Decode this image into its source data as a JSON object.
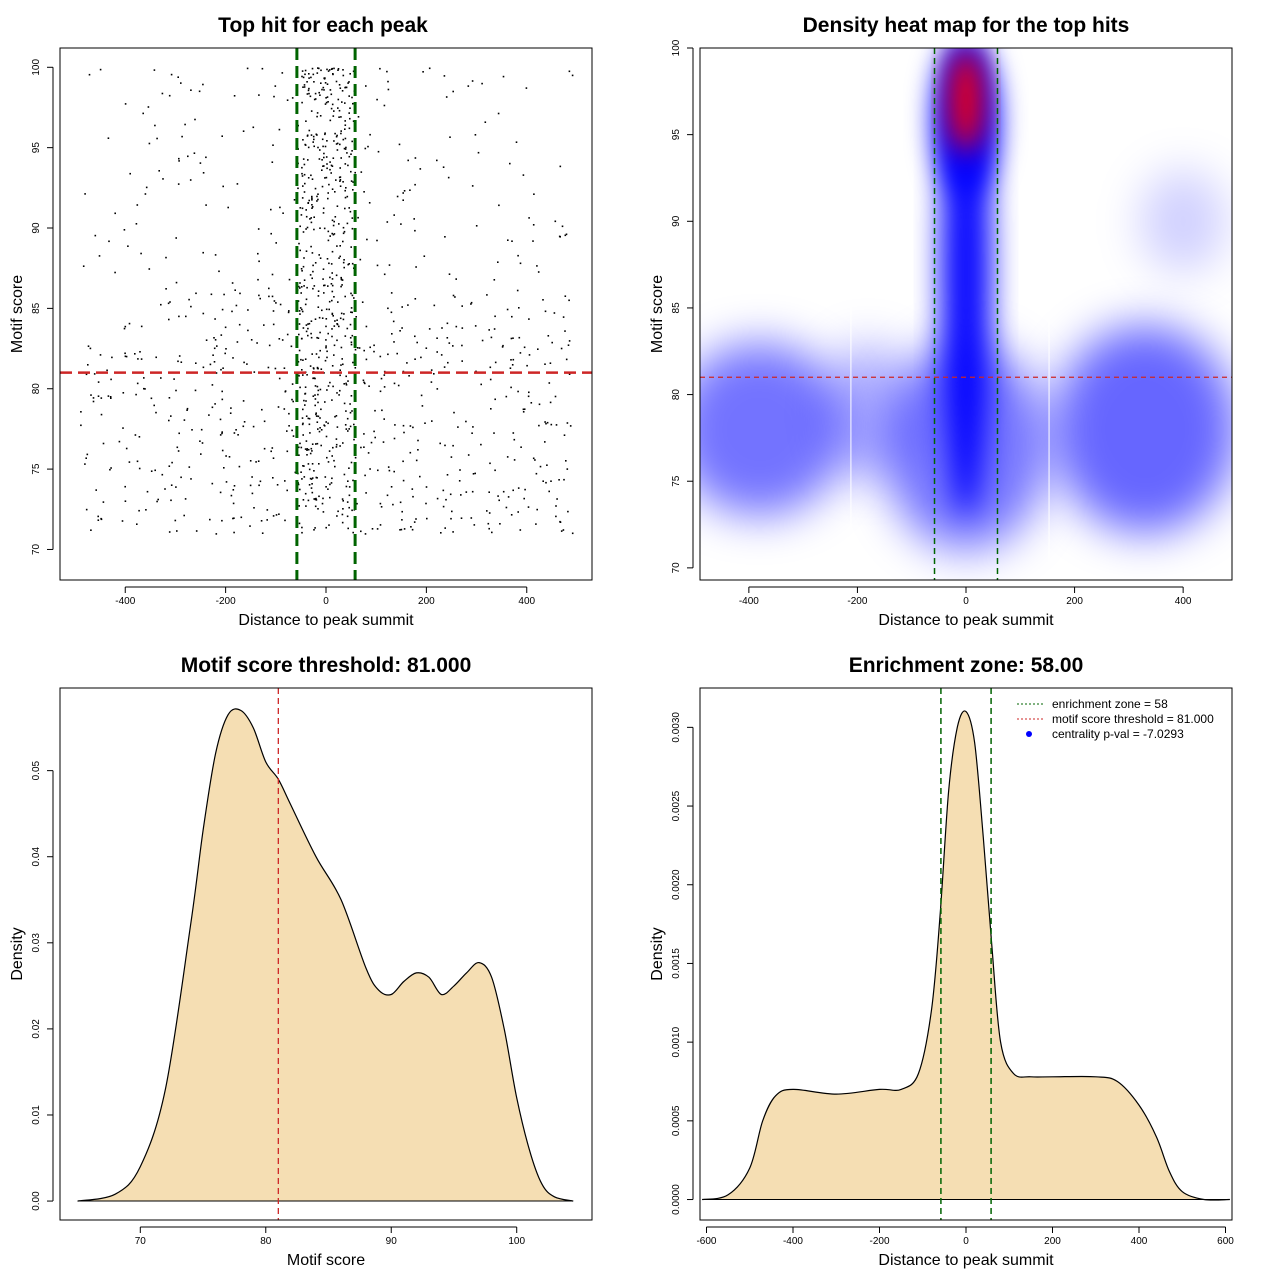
{
  "chart_data": [
    {
      "id": "scatter",
      "type": "scatter",
      "title": "Top hit for each peak",
      "xlabel": "Distance to peak summit",
      "ylabel": "Motif score",
      "xlim": [
        -530,
        530
      ],
      "ylim": [
        68.1,
        101.2
      ],
      "xticks": [
        -400,
        -200,
        0,
        200,
        400
      ],
      "yticks": [
        70,
        75,
        80,
        85,
        90,
        95,
        100
      ],
      "grid": false,
      "enrichment_zone": [
        -58,
        58
      ],
      "score_threshold": 81,
      "point_groups": [
        {
          "name": "",
          "x_range": [
            -490,
            490
          ],
          "y_range": [
            71,
            86
          ],
          "n": 620
        },
        {
          "name": "",
          "x_range": [
            -490,
            490
          ],
          "y_range": [
            86,
            100
          ],
          "n": 200
        },
        {
          "name": "",
          "x_range": [
            -58,
            58
          ],
          "y_range": [
            72,
            100
          ],
          "n": 520
        }
      ],
      "colors": {
        "points": "#000000",
        "zone": "#006400",
        "threshold": "#cd2626"
      }
    },
    {
      "id": "heatmap",
      "type": "heatmap",
      "title": "Density heat map for the top hits",
      "xlabel": "Distance to peak summit",
      "ylabel": "Motif score",
      "xlim": [
        -490,
        490
      ],
      "ylim": [
        69.3,
        100
      ],
      "xticks": [
        -400,
        -200,
        0,
        200,
        400
      ],
      "yticks": [
        70,
        75,
        80,
        85,
        90,
        95,
        100
      ],
      "enrichment_zone": [
        -58,
        58
      ],
      "score_threshold": 81,
      "density_peaks": [
        {
          "x": 0,
          "y": 97,
          "level": "high"
        },
        {
          "x": 0,
          "y": 88,
          "level": "medium"
        },
        {
          "x": 0,
          "y": 78,
          "level": "medium"
        },
        {
          "x": -400,
          "y": 77,
          "level": "low"
        },
        {
          "x": 350,
          "y": 77,
          "level": "low"
        }
      ],
      "colors": {
        "low": "#ffffff",
        "mid": "#0000ff",
        "high": "#ff0000",
        "zone": "#006400",
        "threshold": "#cd2626"
      }
    },
    {
      "id": "score_density",
      "type": "area",
      "title": "Motif score threshold: 81.000",
      "xlabel": "Motif score",
      "ylabel": "Density",
      "xlim": [
        63.6,
        106
      ],
      "ylim": [
        -0.0022,
        0.0596
      ],
      "xticks": [
        70,
        80,
        90,
        100
      ],
      "yticks": [
        0.0,
        0.01,
        0.02,
        0.03,
        0.04,
        0.05
      ],
      "ytick_labels": [
        "0.00",
        "0.01",
        "0.02",
        "0.03",
        "0.04",
        "0.05"
      ],
      "threshold": 81,
      "x": [
        65,
        68,
        70,
        72,
        74,
        75,
        76,
        77,
        78,
        79,
        80,
        81,
        82,
        84,
        86,
        88,
        89,
        90,
        91,
        92,
        93,
        94,
        95,
        96,
        97,
        98,
        99,
        100,
        101,
        102,
        103,
        104.5
      ],
      "y": [
        0,
        0.0008,
        0.004,
        0.013,
        0.032,
        0.043,
        0.052,
        0.0565,
        0.057,
        0.055,
        0.051,
        0.049,
        0.046,
        0.04,
        0.035,
        0.027,
        0.0245,
        0.024,
        0.0255,
        0.0265,
        0.026,
        0.024,
        0.025,
        0.0265,
        0.0277,
        0.026,
        0.02,
        0.012,
        0.006,
        0.002,
        0.0005,
        0
      ],
      "colors": {
        "fill": "#f5deb3",
        "line": "#000000",
        "threshold": "#cd2626"
      }
    },
    {
      "id": "distance_density",
      "type": "area",
      "title": "Enrichment zone: 58.00",
      "xlabel": "Distance to peak summit",
      "ylabel": "Density",
      "xlim": [
        -615,
        615
      ],
      "ylim": [
        -0.00013,
        0.00325
      ],
      "xticks": [
        -600,
        -400,
        -200,
        0,
        200,
        400,
        600
      ],
      "yticks": [
        0,
        0.0005,
        0.001,
        0.0015,
        0.002,
        0.0025,
        0.003
      ],
      "ytick_labels": [
        "0.0000",
        "0.0005",
        "0.0010",
        "0.0015",
        "0.0020",
        "0.0025",
        "0.0030"
      ],
      "enrichment_zone": [
        -58,
        58
      ],
      "x": [
        -610,
        -550,
        -500,
        -470,
        -440,
        -400,
        -300,
        -200,
        -150,
        -110,
        -80,
        -60,
        -40,
        -20,
        0,
        20,
        40,
        60,
        80,
        110,
        150,
        200,
        300,
        350,
        400,
        440,
        470,
        500,
        550,
        610
      ],
      "y": [
        0,
        3e-05,
        0.0002,
        0.0005,
        0.00066,
        0.0007,
        0.00067,
        0.0007,
        0.0007,
        0.0008,
        0.0012,
        0.0018,
        0.0026,
        0.003,
        0.0031,
        0.0029,
        0.0023,
        0.0016,
        0.001,
        0.0008,
        0.00078,
        0.00078,
        0.00078,
        0.00075,
        0.0006,
        0.0004,
        0.00018,
        5e-05,
        0,
        0
      ],
      "legend": {
        "placement": "top-right",
        "entries": [
          {
            "label": "enrichment zone = 58",
            "color": "#006400",
            "style": "dotted-line"
          },
          {
            "label": "motif score threshold = 81.000",
            "color": "#cd2626",
            "style": "dotted-line"
          },
          {
            "label": "centrality p-val = -7.0293",
            "color": "#0000ff",
            "style": "point"
          }
        ]
      },
      "colors": {
        "fill": "#f5deb3",
        "line": "#000000",
        "zone": "#006400"
      }
    }
  ]
}
